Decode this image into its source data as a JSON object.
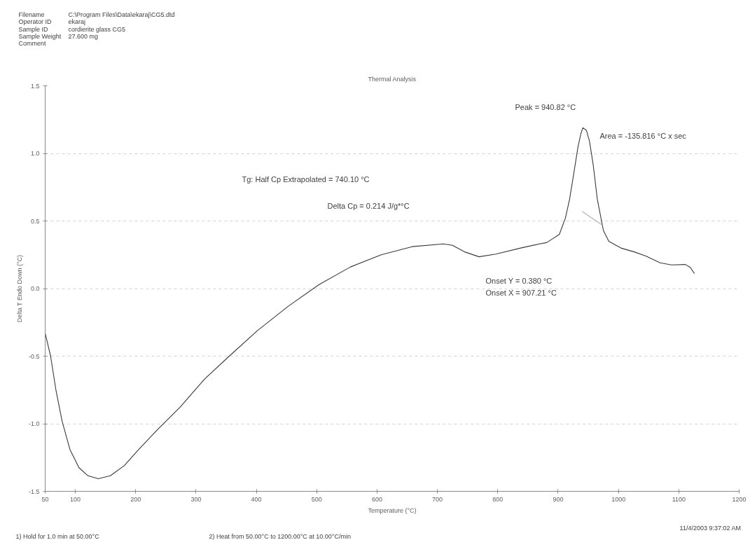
{
  "chart_data": {
    "type": "line",
    "title": "Thermal Analysis",
    "xlabel": "Temperature (°C)",
    "ylabel": "Delta T Endo Down (°C)",
    "xlim": [
      50,
      1200
    ],
    "xticks": [
      50,
      100,
      200,
      300,
      400,
      500,
      600,
      700,
      800,
      900,
      1000,
      1100,
      1200
    ],
    "ylim": [
      -1.5,
      1.5
    ],
    "yticks": [
      -1.5,
      {
        "value": -1.0,
        "label": "-1.0"
      },
      -0.5,
      {
        "value": 0,
        "label": "0.0"
      },
      0.5,
      {
        "value": 1.0,
        "label": "1.0"
      },
      1.5
    ],
    "grid": "y",
    "series": [
      {
        "color": "#3a3a3a",
        "x": [
          50,
          59,
          68,
          78,
          91,
          106,
          121,
          138,
          158,
          181,
          203,
          237,
          273,
          314,
          355,
          402,
          453,
          504,
          556,
          607,
          658,
          710,
          725,
          746,
          769,
          797,
          838,
          869,
          881,
          902,
          912,
          919,
          927,
          933,
          938,
          941,
          947,
          952,
          958,
          965,
          975,
          984,
          1004,
          1027,
          1046,
          1069,
          1088,
          1111,
          1119,
          1126
        ],
        "values": [
          -0.33,
          -0.5,
          -0.755,
          -0.98,
          -1.19,
          -1.325,
          -1.385,
          -1.407,
          -1.385,
          -1.31,
          -1.2,
          -1.04,
          -0.88,
          -0.67,
          -0.5,
          -0.31,
          -0.13,
          0.03,
          0.16,
          0.25,
          0.31,
          0.33,
          0.32,
          0.27,
          0.235,
          0.255,
          0.3,
          0.33,
          0.34,
          0.4,
          0.52,
          0.66,
          0.88,
          1.05,
          1.15,
          1.19,
          1.17,
          1.09,
          0.92,
          0.66,
          0.43,
          0.35,
          0.3,
          0.27,
          0.24,
          0.19,
          0.175,
          0.178,
          0.157,
          0.11
        ]
      },
      {
        "color": "#b0b0b0",
        "x": [
          940,
          973
        ],
        "values": [
          0.57,
          0.47
        ]
      }
    ],
    "annotations": [
      "Filename",
      "C:\\Program Files\\Data\\ekaraj\\CG5.dtd",
      "Operator ID",
      "ekaraj",
      "Sample ID",
      "cordierite glass CG5",
      "Sample Weight",
      "27.600 mg",
      "Comment",
      "Peak = 940.82 °C",
      "Area = -135.816 °C x sec",
      "Tg: Half Cp Extrapolated = 740.10 °C",
      "Delta Cp = 0.214 J/g*°C",
      "Onset Y = 0.380 °C",
      "Onset X = 907.21 °C",
      "1) Hold for 1.0 min at 50.00°C",
      "2) Heat from 50.00°C to 1200.00°C at 10.00°C/min",
      "11/4/2003 9:37:02 AM"
    ]
  }
}
